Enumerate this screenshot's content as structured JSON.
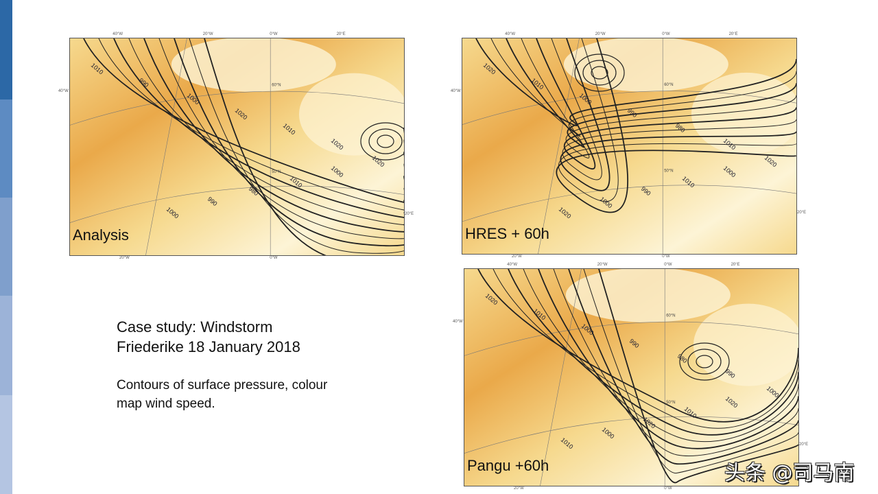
{
  "slide": {
    "sidebar_colors": [
      "#2c68a6",
      "#5d8bc2",
      "#7f9fcc",
      "#9cb3d8",
      "#b4c5e2"
    ],
    "caption": {
      "title_line1": "Case study: Windstorm",
      "title_line2": "Friederike 18 January 2018",
      "desc_line1": "Contours of surface pressure, colour",
      "desc_line2": "map wind speed."
    },
    "watermark": "头条 @司马南"
  },
  "maps": [
    {
      "label": "Analysis",
      "contour_labels": [
        "1010",
        "990",
        "1000",
        "1020",
        "1010",
        "1020",
        "1000",
        "990",
        "980",
        "1010",
        "1000",
        "1020"
      ]
    },
    {
      "label": "HRES + 60h",
      "contour_labels": [
        "1020",
        "1010",
        "1000",
        "990",
        "980",
        "1010",
        "1020",
        "1000",
        "990",
        "1010",
        "1000",
        "1020"
      ]
    },
    {
      "label": "Pangu +60h",
      "contour_labels": [
        "1020",
        "1010",
        "1000",
        "990",
        "980",
        "990",
        "1010",
        "1000",
        "1020",
        "1010",
        "1020",
        "1000"
      ]
    }
  ],
  "axis_ticks": {
    "top": [
      "40°W",
      "20°W",
      "0°W",
      "20°E"
    ],
    "left": "40°W",
    "right": "20°E",
    "bottom": [
      "20°W",
      "0°W"
    ],
    "lat": [
      "60°N",
      "50°N"
    ]
  },
  "colors": {
    "calm": "#fdf4d6",
    "moderate": "#f6d98e",
    "strong": "#eaa94a",
    "contour": "#222222"
  }
}
